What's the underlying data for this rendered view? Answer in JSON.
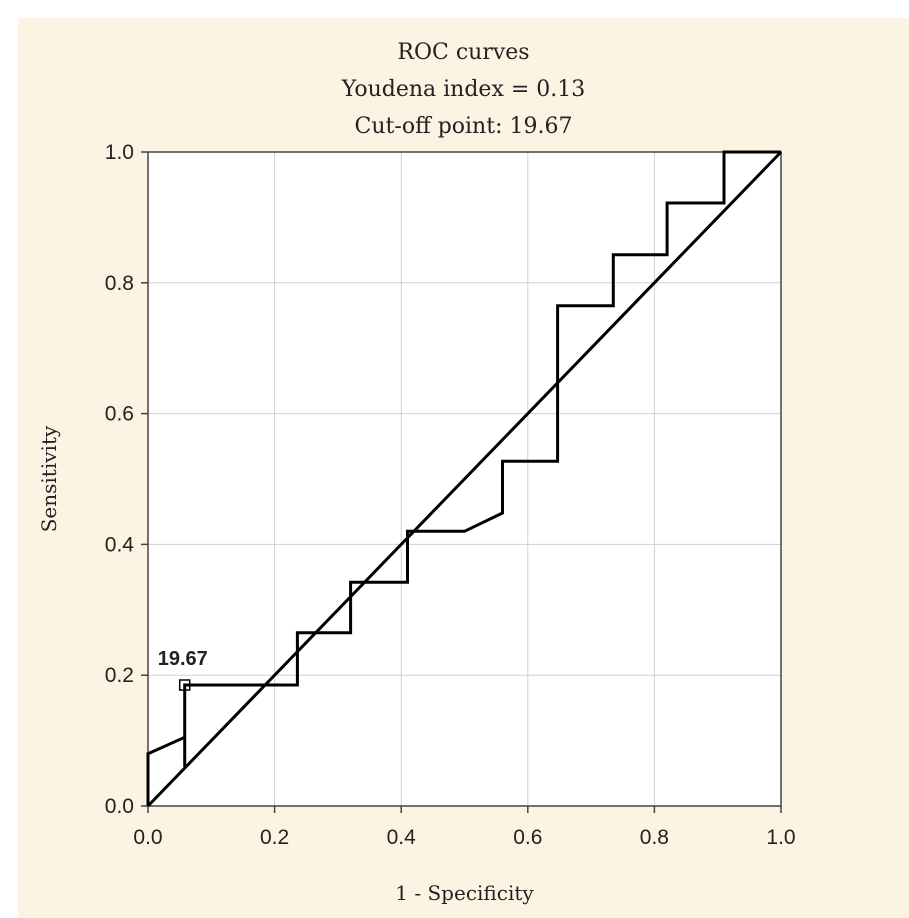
{
  "chart_data": {
    "type": "line",
    "title": "ROC curves",
    "subtitle_lines": [
      "Youdena index = 0.13",
      "Cut-off point: 19.67"
    ],
    "xlabel": "1 - Specificity",
    "ylabel": "Sensitivity",
    "xlim": [
      0.0,
      1.0
    ],
    "ylim": [
      0.0,
      1.0
    ],
    "xticks": [
      "0.0",
      "0.2",
      "0.4",
      "0.6",
      "0.8",
      "1.0"
    ],
    "yticks": [
      "0.0",
      "0.2",
      "0.4",
      "0.6",
      "0.8",
      "1.0"
    ],
    "grid": true,
    "series": [
      {
        "x": [
          0.0,
          0.0,
          0.058,
          0.058,
          0.058,
          0.236,
          0.236,
          0.32,
          0.32,
          0.41,
          0.41,
          0.5,
          0.56,
          0.56,
          0.647,
          0.647,
          0.735,
          0.735,
          0.82,
          0.82,
          0.91,
          0.91,
          1.0
        ],
        "y": [
          0.0,
          0.08,
          0.105,
          0.06,
          0.185,
          0.185,
          0.265,
          0.265,
          0.342,
          0.342,
          0.42,
          0.42,
          0.448,
          0.527,
          0.527,
          0.765,
          0.765,
          0.843,
          0.843,
          0.922,
          0.922,
          1.0,
          1.0
        ]
      },
      {
        "x": [
          0.0,
          1.0
        ],
        "y": [
          0.0,
          1.0
        ]
      }
    ],
    "cutoff_point": {
      "x": 0.058,
      "y": 0.185,
      "label": "19.67"
    },
    "colors": {
      "line": "#000000",
      "grid": "#d0d0d0",
      "background": "#fdf3e3",
      "plot_area": "#ffffff"
    }
  }
}
